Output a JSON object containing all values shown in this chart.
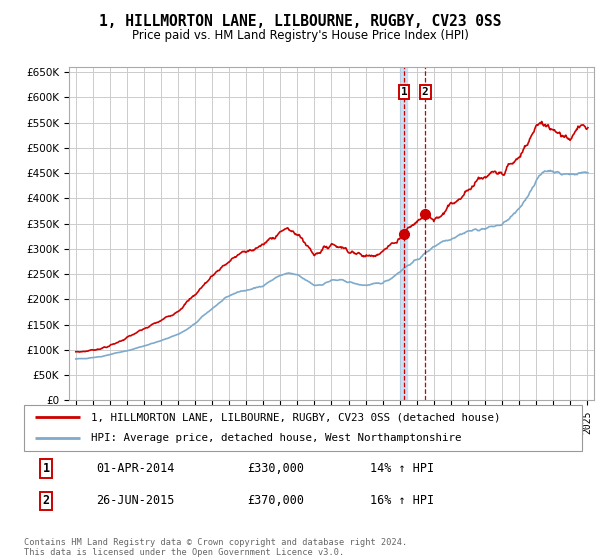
{
  "title": "1, HILLMORTON LANE, LILBOURNE, RUGBY, CV23 0SS",
  "subtitle": "Price paid vs. HM Land Registry's House Price Index (HPI)",
  "legend_line1": "1, HILLMORTON LANE, LILBOURNE, RUGBY, CV23 0SS (detached house)",
  "legend_line2": "HPI: Average price, detached house, West Northamptonshire",
  "sale1_date": "01-APR-2014",
  "sale1_price": "£330,000",
  "sale1_hpi": "14% ↑ HPI",
  "sale2_date": "26-JUN-2015",
  "sale2_price": "£370,000",
  "sale2_hpi": "16% ↑ HPI",
  "footer": "Contains HM Land Registry data © Crown copyright and database right 2024.\nThis data is licensed under the Open Government Licence v3.0.",
  "red_color": "#cc0000",
  "blue_color": "#7eaacc",
  "sale1_vline_color": "#aaccee",
  "background_color": "#ffffff",
  "grid_color": "#cccccc",
  "ylim": [
    0,
    660000
  ],
  "yticks": [
    0,
    50000,
    100000,
    150000,
    200000,
    250000,
    300000,
    350000,
    400000,
    450000,
    500000,
    550000,
    600000,
    650000
  ],
  "sale1_x": 2014.25,
  "sale2_x": 2015.5,
  "sale1_y": 330000,
  "sale2_y": 370000,
  "xmin": 1994.6,
  "xmax": 2025.4
}
